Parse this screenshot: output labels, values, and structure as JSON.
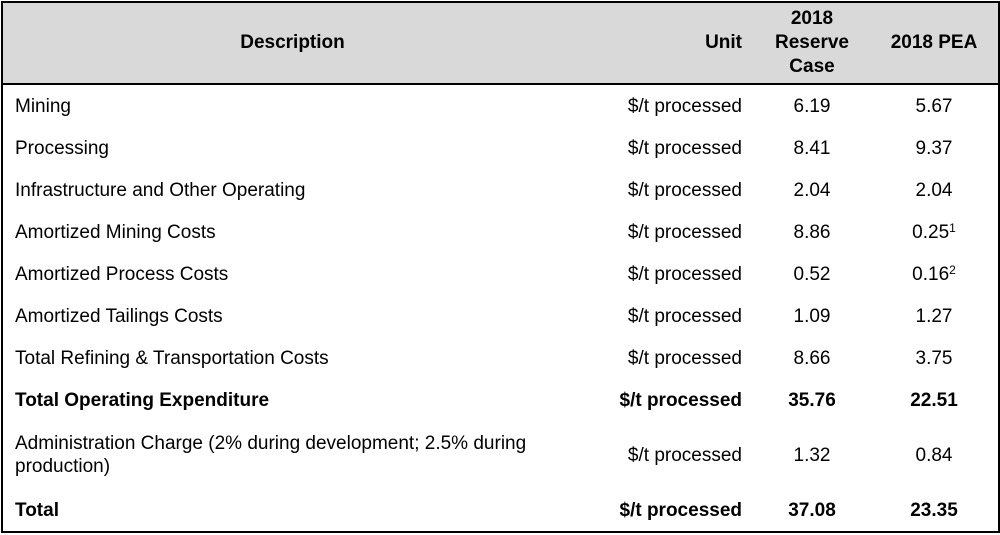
{
  "table": {
    "headers": {
      "description": "Description",
      "unit": "Unit",
      "reserve_line1": "2018",
      "reserve_line2": "Reserve",
      "reserve_line3": "Case",
      "pea": "2018 PEA"
    },
    "rows": [
      {
        "description": "Mining",
        "unit": "$/t processed",
        "reserve": "6.19",
        "pea": "5.67",
        "pea_note": ""
      },
      {
        "description": "Processing",
        "unit": "$/t processed",
        "reserve": "8.41",
        "pea": "9.37",
        "pea_note": ""
      },
      {
        "description": "Infrastructure and Other Operating",
        "unit": "$/t processed",
        "reserve": "2.04",
        "pea": "2.04",
        "pea_note": ""
      },
      {
        "description": "Amortized Mining Costs",
        "unit": "$/t processed",
        "reserve": "8.86",
        "pea": "0.25",
        "pea_note": "1"
      },
      {
        "description": "Amortized Process Costs",
        "unit": "$/t processed",
        "reserve": "0.52",
        "pea": "0.16",
        "pea_note": "2"
      },
      {
        "description": "Amortized Tailings Costs",
        "unit": "$/t processed",
        "reserve": "1.09",
        "pea": "1.27",
        "pea_note": ""
      },
      {
        "description": "Total Refining & Transportation Costs",
        "unit": "$/t processed",
        "reserve": "8.66",
        "pea": "3.75",
        "pea_note": ""
      },
      {
        "description": "Total Operating Expenditure",
        "unit": "$/t processed",
        "reserve": "35.76",
        "pea": "22.51",
        "pea_note": ""
      },
      {
        "description": "Administration Charge (2% during development; 2.5% during production)",
        "unit": "$/t processed",
        "reserve": "1.32",
        "pea": "0.84",
        "pea_note": ""
      },
      {
        "description": "Total",
        "unit": "$/t processed",
        "reserve": "37.08",
        "pea": "23.35",
        "pea_note": ""
      }
    ]
  }
}
